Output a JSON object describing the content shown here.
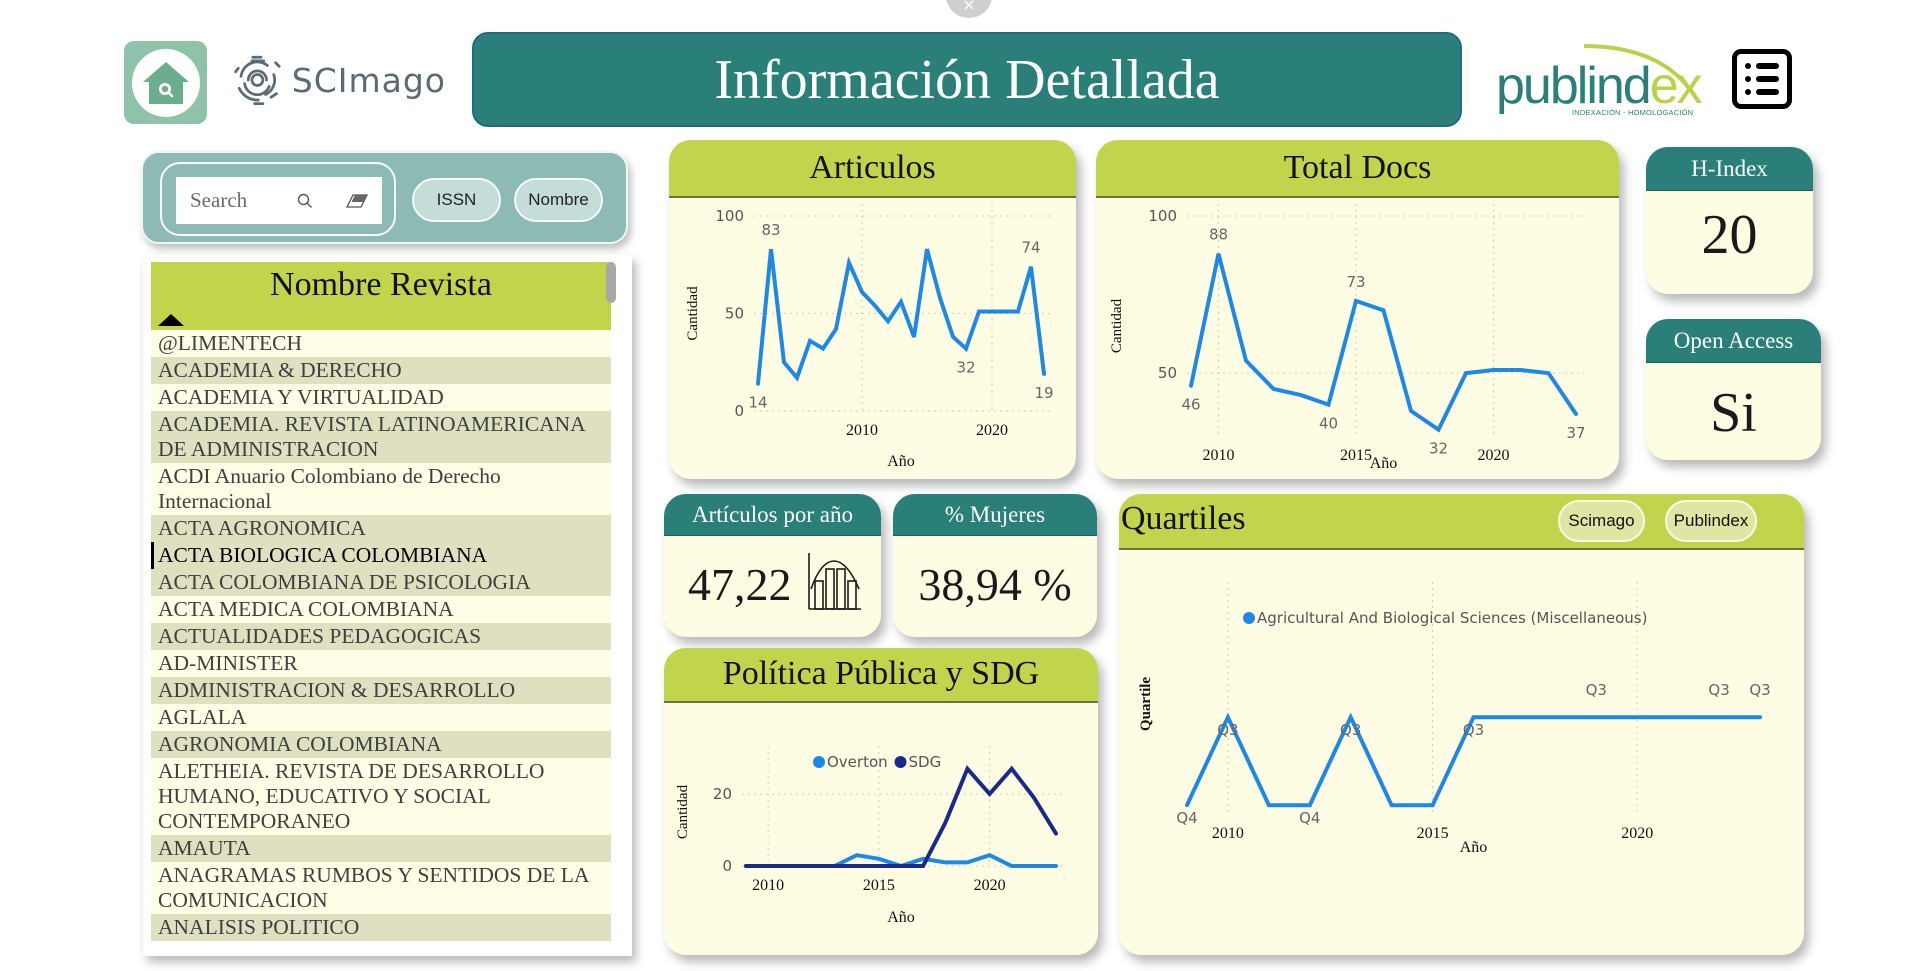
{
  "header": {
    "title": "Información Detallada",
    "scimago_logo_text": "SCImago",
    "publindex_logo_main": "publind",
    "publindex_logo_accent": "ex",
    "publindex_logo_sub": "INDEXACIÓN - HOMOLOGACIÓN",
    "close_icon": "×"
  },
  "search": {
    "placeholder": "Search",
    "value": "",
    "buttons": [
      {
        "label": "ISSN"
      },
      {
        "label": "Nombre"
      }
    ]
  },
  "journal_list": {
    "header": "Nombre Revista",
    "sort": "ascending",
    "selected_index": 7,
    "items": [
      "@LIMENTECH",
      "ACADEMIA & DERECHO",
      "ACADEMIA Y VIRTUALIDAD",
      "ACADEMIA. REVISTA LATINOAMERICANA DE ADMINISTRACION",
      "ACDI Anuario Colombiano de Derecho Internacional",
      "ACTA AGRONOMICA",
      "ACTA BIOLOGICA COLOMBIANA",
      "ACTA COLOMBIANA DE PSICOLOGIA",
      "ACTA MEDICA COLOMBIANA",
      "ACTUALIDADES PEDAGOGICAS",
      "AD-MINISTER",
      "ADMINISTRACION & DESARROLLO",
      "AGLALA",
      "AGRONOMIA COLOMBIANA",
      "ALETHEIA. REVISTA DE DESARROLLO HUMANO, EDUCATIVO Y SOCIAL CONTEMPORANEO",
      "AMAUTA",
      "ANAGRAMAS RUMBOS Y SENTIDOS DE LA COMUNICACION",
      "ANALISIS POLITICO"
    ]
  },
  "cards": {
    "articulos": {
      "title": "Articulos"
    },
    "total_docs": {
      "title": "Total Docs"
    },
    "h_index": {
      "title": "H-Index",
      "value": "20"
    },
    "open_access": {
      "title": "Open Access",
      "value": "Si"
    },
    "articulos_por_ano": {
      "title": "Artículos por año",
      "value": "47,22"
    },
    "mujeres": {
      "title": "% Mujeres",
      "value": "38,94 %"
    },
    "politica": {
      "title": "Política Pública y SDG"
    },
    "quartiles": {
      "title": "Quartiles",
      "buttons": [
        {
          "label": "Scimago"
        },
        {
          "label": "Publindex"
        }
      ]
    }
  },
  "colors": {
    "teal": "#2a8079",
    "lime": "#c2d44c",
    "cream": "#fefde3",
    "line_blue": "#1e88e5",
    "line_navy": "#1a2a8c"
  },
  "chart_data": [
    {
      "id": "articulos",
      "type": "line",
      "title": "Articulos",
      "xlabel": "Año",
      "ylabel": "Cantidad",
      "ylim": [
        0,
        100
      ],
      "yticks": [
        0,
        50,
        100
      ],
      "xticks": [
        2010,
        2020
      ],
      "grid": true,
      "x": [
        2002,
        2003,
        2004,
        2005,
        2006,
        2007,
        2008,
        2009,
        2010,
        2011,
        2012,
        2013,
        2014,
        2015,
        2016,
        2017,
        2018,
        2019,
        2020,
        2021,
        2022,
        2023,
        2024
      ],
      "values": [
        14,
        83,
        25,
        17,
        36,
        32,
        42,
        76,
        61,
        54,
        46,
        56,
        38,
        83,
        58,
        38,
        32,
        51,
        51,
        51,
        51,
        74,
        19
      ],
      "data_labels": [
        {
          "x": 2002,
          "label": "14"
        },
        {
          "x": 2003,
          "label": "83"
        },
        {
          "x": 2018,
          "label": "32"
        },
        {
          "x": 2023,
          "label": "74"
        },
        {
          "x": 2024,
          "label": "19"
        }
      ]
    },
    {
      "id": "total_docs",
      "type": "line",
      "title": "Total Docs",
      "xlabel": "Año",
      "ylabel": "Cantidad",
      "ylim": [
        30,
        100
      ],
      "yticks": [
        50,
        100
      ],
      "xticks": [
        2010,
        2015,
        2020
      ],
      "grid": true,
      "x": [
        2009,
        2010,
        2011,
        2012,
        2013,
        2014,
        2015,
        2016,
        2017,
        2018,
        2019,
        2020,
        2021,
        2022,
        2023
      ],
      "values": [
        46,
        88,
        54,
        45,
        43,
        40,
        73,
        70,
        38,
        32,
        50,
        51,
        51,
        50,
        37
      ],
      "data_labels": [
        {
          "x": 2009,
          "label": "46"
        },
        {
          "x": 2010,
          "label": "88"
        },
        {
          "x": 2014,
          "label": "40"
        },
        {
          "x": 2015,
          "label": "73"
        },
        {
          "x": 2018,
          "label": "32"
        },
        {
          "x": 2023,
          "label": "37"
        }
      ]
    },
    {
      "id": "politica",
      "type": "line",
      "title": "Política Pública y SDG",
      "xlabel": "Año",
      "ylabel": "Cantidad",
      "ylim": [
        0,
        30
      ],
      "yticks": [
        0,
        20
      ],
      "xticks": [
        2010,
        2015,
        2020
      ],
      "grid": true,
      "legend_position": "top",
      "x": [
        2009,
        2010,
        2011,
        2012,
        2013,
        2014,
        2015,
        2016,
        2017,
        2018,
        2019,
        2020,
        2021,
        2022,
        2023
      ],
      "series": [
        {
          "name": "Overton",
          "color": "#1e88e5",
          "values": [
            0,
            0,
            0,
            0,
            0,
            3,
            2,
            0,
            2,
            1,
            1,
            3,
            0,
            0,
            0
          ]
        },
        {
          "name": "SDG",
          "color": "#1a2a8c",
          "values": [
            0,
            0,
            0,
            0,
            0,
            0,
            0,
            0,
            0,
            12,
            27,
            20,
            27,
            19,
            9
          ]
        }
      ]
    },
    {
      "id": "quartiles",
      "type": "line",
      "title": "Quartiles",
      "xlabel": "Año",
      "ylabel": "Quartile",
      "xticks": [
        2010,
        2015,
        2020
      ],
      "grid": true,
      "legend_position": "top",
      "x": [
        2009,
        2010,
        2011,
        2012,
        2013,
        2014,
        2015,
        2016,
        2017,
        2018,
        2019,
        2020,
        2021,
        2022,
        2023
      ],
      "series": [
        {
          "name": "Agricultural And Biological Sciences (Miscellaneous)",
          "color": "#1e88e5",
          "values": [
            "Q4",
            "Q3",
            "Q4",
            "Q4",
            "Q3",
            "Q4",
            "Q4",
            "Q3",
            "Q3",
            "Q3",
            "Q3",
            "Q3",
            "Q3",
            "Q3",
            "Q3"
          ]
        }
      ],
      "data_labels": [
        {
          "x": 2009,
          "label": "Q4"
        },
        {
          "x": 2010,
          "label": "Q3"
        },
        {
          "x": 2012,
          "label": "Q4"
        },
        {
          "x": 2013,
          "label": "Q3"
        },
        {
          "x": 2016,
          "label": "Q3"
        },
        {
          "x": 2019,
          "label": "Q3"
        },
        {
          "x": 2022,
          "label": "Q3"
        },
        {
          "x": 2023,
          "label": "Q3"
        }
      ]
    }
  ]
}
